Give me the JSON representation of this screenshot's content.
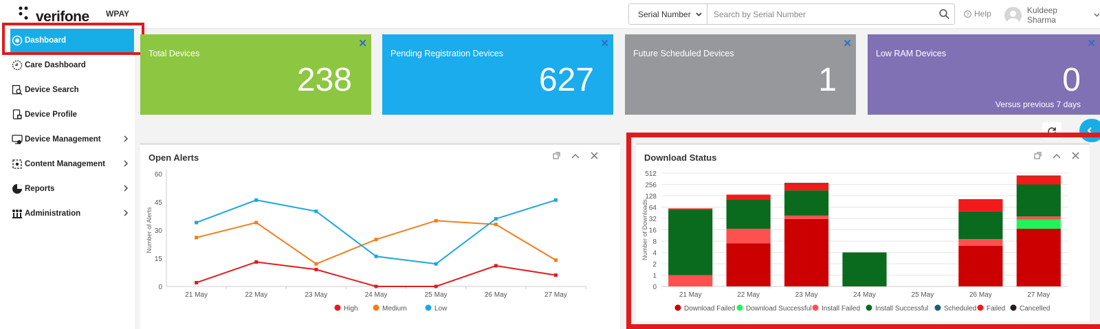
{
  "header": {
    "brand": "verifone",
    "app_name": "WPAY",
    "search_type": "Serial Number",
    "search_placeholder": "Search by Serial Number",
    "help_label": "Help",
    "user_name": "Kuldeep Sharma"
  },
  "sidebar": {
    "items": [
      {
        "label": "Dashboard",
        "icon": "dashboard-icon",
        "has_submenu": false,
        "active": true
      },
      {
        "label": "Care Dashboard",
        "icon": "care-dashboard-icon",
        "has_submenu": false,
        "active": false
      },
      {
        "label": "Device Search",
        "icon": "device-search-icon",
        "has_submenu": false,
        "active": false
      },
      {
        "label": "Device Profile",
        "icon": "device-profile-icon",
        "has_submenu": false,
        "active": false
      },
      {
        "label": "Device Management",
        "icon": "device-management-icon",
        "has_submenu": true,
        "active": false
      },
      {
        "label": "Content Management",
        "icon": "content-management-icon",
        "has_submenu": true,
        "active": false
      },
      {
        "label": "Reports",
        "icon": "reports-icon",
        "has_submenu": true,
        "active": false
      },
      {
        "label": "Administration",
        "icon": "administration-icon",
        "has_submenu": true,
        "active": false
      }
    ]
  },
  "cards": [
    {
      "title": "Total Devices",
      "value": "238",
      "color": "#8dc641",
      "subtitle": ""
    },
    {
      "title": "Pending Registration Devices",
      "value": "627",
      "color": "#1aacec",
      "subtitle": ""
    },
    {
      "title": "Future Scheduled Devices",
      "value": "1",
      "color": "#97989b",
      "subtitle": ""
    },
    {
      "title": "Low RAM Devices",
      "value": "0",
      "color": "#8071b5",
      "subtitle": "Versus previous 7 days"
    }
  ],
  "alerts_panel": {
    "title": "Open Alerts",
    "chart_data": {
      "type": "line",
      "ylabel": "Number of Alerts",
      "xlabel": "",
      "categories": [
        "21 May",
        "22 May",
        "23 May",
        "24 May",
        "25 May",
        "26 May",
        "27 May"
      ],
      "ylim": [
        0,
        60
      ],
      "yticks": [
        0,
        15,
        30,
        45,
        60
      ],
      "series": [
        {
          "name": "High",
          "color": "#e31b1b",
          "values": [
            2,
            13,
            9,
            0,
            0,
            11,
            6
          ]
        },
        {
          "name": "Medium",
          "color": "#f07d1a",
          "values": [
            26,
            34,
            12,
            25,
            35,
            33,
            14
          ]
        },
        {
          "name": "Low",
          "color": "#1ba6e2",
          "values": [
            34,
            46,
            40,
            16,
            12,
            36,
            46
          ]
        }
      ]
    }
  },
  "download_panel": {
    "title": "Download Status",
    "chart_data": {
      "type": "bar",
      "stacked": true,
      "yscale": "log2",
      "ylabel": "Number of Downloads",
      "categories": [
        "21 May",
        "22 May",
        "23 May",
        "24 May",
        "25 May",
        "26 May",
        "27 May"
      ],
      "yticks": [
        "0",
        "1",
        "2",
        "4",
        "8",
        "16",
        "32",
        "64",
        "128",
        "256",
        "512"
      ],
      "series": [
        {
          "name": "Download Failed",
          "color": "#cc0000",
          "values": [
            0,
            7,
            31,
            0,
            0,
            6,
            17
          ]
        },
        {
          "name": "Download Successful",
          "color": "#1ff35a",
          "values": [
            0,
            0,
            0,
            0,
            0,
            0,
            13
          ]
        },
        {
          "name": "Install Failed",
          "color": "#ff5050",
          "values": [
            1,
            10,
            7,
            0,
            0,
            3,
            6
          ]
        },
        {
          "name": "Install Successful",
          "color": "#0a6b1e",
          "values": [
            54,
            85,
            140,
            4,
            0,
            40,
            220
          ]
        },
        {
          "name": "Scheduled",
          "color": "#1b5f73",
          "values": [
            0,
            0,
            0,
            0,
            0,
            0,
            0
          ]
        },
        {
          "name": "Failed",
          "color": "#f21a1a",
          "values": [
            4,
            35,
            90,
            0,
            0,
            55,
            170
          ]
        },
        {
          "name": "Cancelled",
          "color": "#2a1a1a",
          "values": [
            0,
            0,
            12,
            0,
            0,
            0,
            14
          ]
        }
      ]
    }
  }
}
